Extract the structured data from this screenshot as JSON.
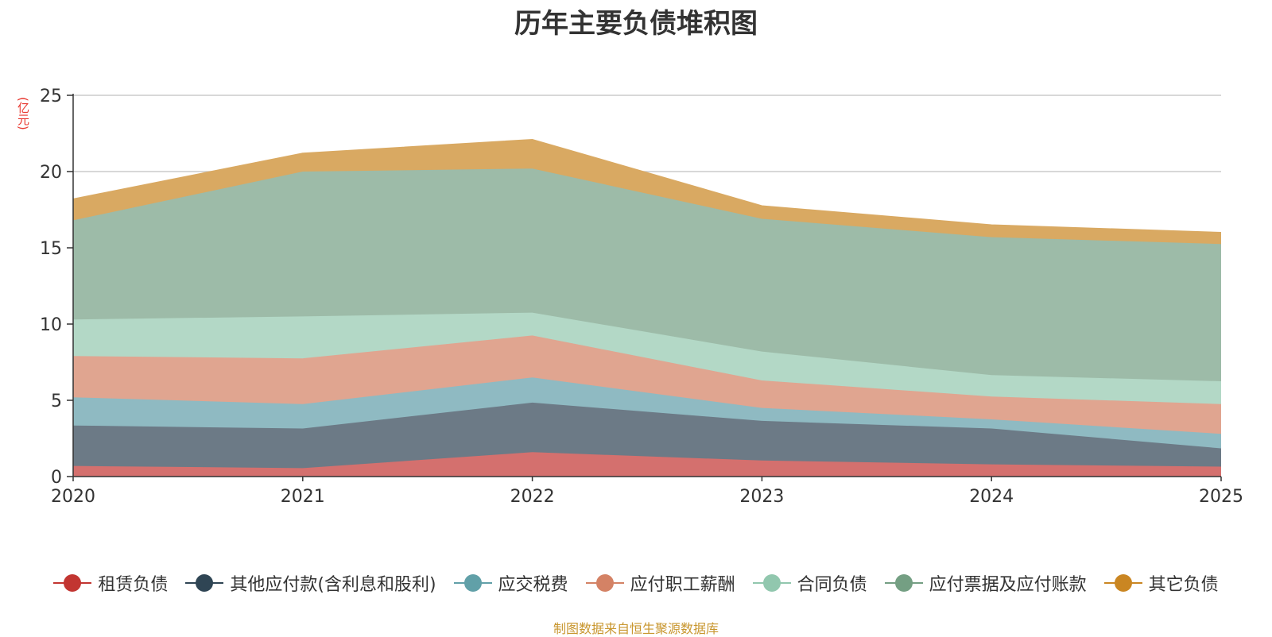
{
  "chart_data": {
    "type": "area",
    "stacked": true,
    "title": "历年主要负债堆积图",
    "ylabel": "(亿元)",
    "ylim": [
      0,
      25
    ],
    "yticks": [
      0,
      5,
      10,
      15,
      20,
      25
    ],
    "grid": true,
    "legend_position": "bottom",
    "categories": [
      "2020",
      "2021",
      "2022",
      "2023",
      "2024",
      "2025"
    ],
    "series": [
      {
        "name": "租赁负债",
        "values": [
          0.7,
          0.55,
          1.6,
          1.05,
          0.8,
          0.65
        ],
        "line_color": "#c23531",
        "fill_color": "#d4706e"
      },
      {
        "name": "其他应付款(含利息和股利)",
        "values": [
          2.65,
          2.6,
          3.25,
          2.6,
          2.35,
          1.2
        ],
        "line_color": "#2f4554",
        "fill_color": "#6c7a86"
      },
      {
        "name": "应交税费",
        "values": [
          1.85,
          1.6,
          1.65,
          0.85,
          0.6,
          0.95
        ],
        "line_color": "#61a0a8",
        "fill_color": "#8fbac2"
      },
      {
        "name": "应付职工薪酬",
        "values": [
          2.7,
          3.0,
          2.75,
          1.8,
          1.5,
          1.95
        ],
        "line_color": "#d48265",
        "fill_color": "#e0a590"
      },
      {
        "name": "合同负债",
        "values": [
          2.4,
          2.75,
          1.5,
          1.9,
          1.4,
          1.5
        ],
        "line_color": "#91c7ae",
        "fill_color": "#b3d8c6"
      },
      {
        "name": "应付票据及应付账款",
        "values": [
          6.5,
          9.5,
          9.45,
          8.7,
          9.05,
          9.0
        ],
        "line_color": "#749f83",
        "fill_color": "#9dbba8"
      },
      {
        "name": "其它负债",
        "values": [
          1.4,
          1.2,
          1.9,
          0.85,
          0.8,
          0.75
        ],
        "line_color": "#ca8622",
        "fill_color": "#d9a962"
      }
    ]
  },
  "source_note": "制图数据来自恒生聚源数据库"
}
